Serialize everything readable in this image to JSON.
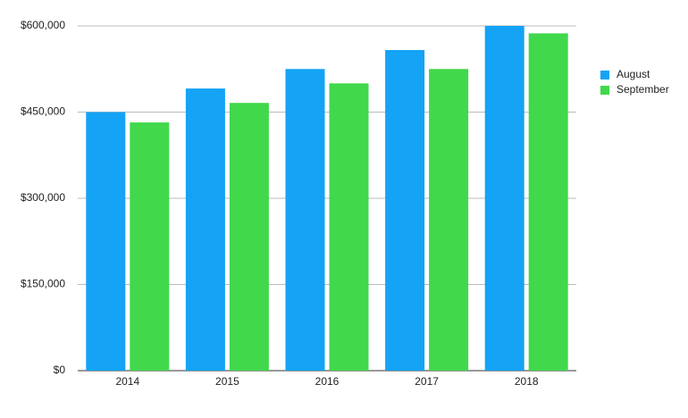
{
  "chart_data": {
    "type": "bar",
    "categories": [
      "2014",
      "2015",
      "2016",
      "2017",
      "2018"
    ],
    "series": [
      {
        "name": "August",
        "color": "#14a3f5",
        "values": [
          450000,
          491000,
          525000,
          558000,
          600000
        ]
      },
      {
        "name": "September",
        "color": "#41d84c",
        "values": [
          432000,
          466000,
          500000,
          525000,
          587000
        ]
      }
    ],
    "ylim": [
      0,
      600000
    ],
    "yticks": [
      {
        "value": 0,
        "label": "$0"
      },
      {
        "value": 150000,
        "label": "$150,000"
      },
      {
        "value": 300000,
        "label": "$300,000"
      },
      {
        "value": 450000,
        "label": "$450,000"
      },
      {
        "value": 600000,
        "label": "$600,000"
      }
    ],
    "grid": true,
    "legend": "right"
  }
}
